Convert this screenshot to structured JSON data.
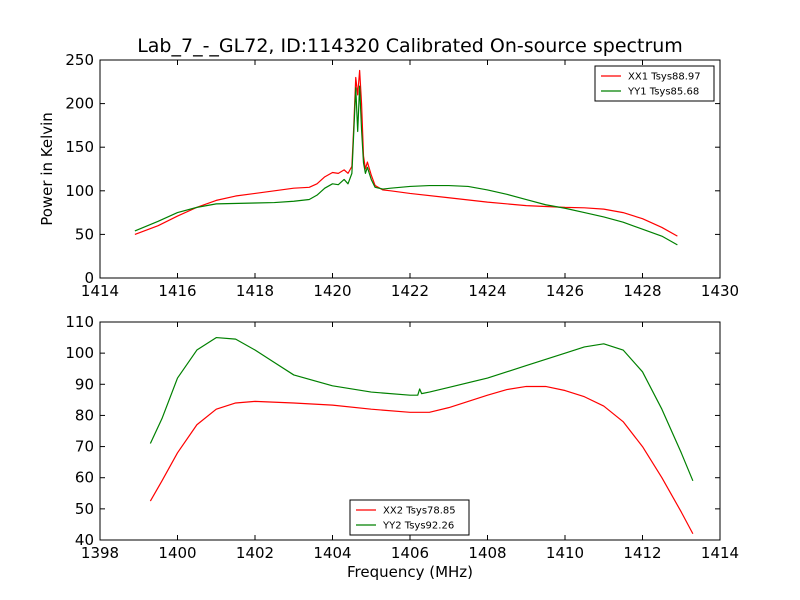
{
  "chart_data": [
    {
      "type": "line",
      "title": "Lab_7_-_GL72, ID:114320 Calibrated On-source spectrum",
      "xlabel": "",
      "ylabel": "Power in Kelvin",
      "xlim": [
        1414,
        1430
      ],
      "ylim": [
        0,
        250
      ],
      "xticks": [
        1414,
        1416,
        1418,
        1420,
        1422,
        1424,
        1426,
        1428,
        1430
      ],
      "yticks": [
        0,
        50,
        100,
        150,
        200,
        250
      ],
      "grid": false,
      "legend_position": "top-right",
      "series": [
        {
          "name": "XX1 Tsys88.97",
          "color": "#ff0000",
          "points": [
            [
              1414.9,
              50
            ],
            [
              1415.5,
              60
            ],
            [
              1416,
              71
            ],
            [
              1416.5,
              81
            ],
            [
              1417,
              89
            ],
            [
              1417.5,
              94
            ],
            [
              1418,
              97
            ],
            [
              1418.5,
              100
            ],
            [
              1419,
              103
            ],
            [
              1419.4,
              104
            ],
            [
              1419.6,
              108
            ],
            [
              1419.8,
              116
            ],
            [
              1420.0,
              121
            ],
            [
              1420.15,
              120
            ],
            [
              1420.3,
              124
            ],
            [
              1420.4,
              120
            ],
            [
              1420.5,
              128
            ],
            [
              1420.55,
              175
            ],
            [
              1420.6,
              230
            ],
            [
              1420.65,
              210
            ],
            [
              1420.7,
              238
            ],
            [
              1420.75,
              200
            ],
            [
              1420.8,
              140
            ],
            [
              1420.85,
              125
            ],
            [
              1420.9,
              133
            ],
            [
              1421.0,
              118
            ],
            [
              1421.1,
              106
            ],
            [
              1421.3,
              101
            ],
            [
              1421.5,
              100
            ],
            [
              1422,
              97
            ],
            [
              1423,
              92
            ],
            [
              1424,
              87
            ],
            [
              1425,
              83
            ],
            [
              1426,
              81
            ],
            [
              1426.5,
              80.5
            ],
            [
              1427,
              79
            ],
            [
              1427.5,
              75
            ],
            [
              1428,
              68
            ],
            [
              1428.5,
              58
            ],
            [
              1428.9,
              48
            ]
          ]
        },
        {
          "name": "YY1 Tsys85.68",
          "color": "#008000",
          "points": [
            [
              1414.9,
              54
            ],
            [
              1415.5,
              65
            ],
            [
              1416,
              75
            ],
            [
              1416.5,
              81
            ],
            [
              1417,
              85
            ],
            [
              1418,
              86
            ],
            [
              1418.5,
              86.5
            ],
            [
              1419,
              88
            ],
            [
              1419.4,
              90
            ],
            [
              1419.6,
              95
            ],
            [
              1419.8,
              103
            ],
            [
              1420.0,
              108
            ],
            [
              1420.15,
              107
            ],
            [
              1420.3,
              113
            ],
            [
              1420.4,
              108
            ],
            [
              1420.5,
              120
            ],
            [
              1420.55,
              168
            ],
            [
              1420.6,
              218
            ],
            [
              1420.65,
              168
            ],
            [
              1420.7,
              220
            ],
            [
              1420.75,
              170
            ],
            [
              1420.8,
              132
            ],
            [
              1420.85,
              120
            ],
            [
              1420.9,
              127
            ],
            [
              1421.0,
              113
            ],
            [
              1421.1,
              104
            ],
            [
              1421.3,
              102
            ],
            [
              1421.5,
              103
            ],
            [
              1422,
              105
            ],
            [
              1422.5,
              106
            ],
            [
              1423,
              106
            ],
            [
              1423.5,
              105
            ],
            [
              1424,
              101
            ],
            [
              1424.5,
              96
            ],
            [
              1425,
              90
            ],
            [
              1425.5,
              84
            ],
            [
              1426,
              80
            ],
            [
              1426.5,
              75
            ],
            [
              1427,
              70
            ],
            [
              1427.5,
              64
            ],
            [
              1428,
              56
            ],
            [
              1428.5,
              48
            ],
            [
              1428.9,
              38
            ]
          ]
        }
      ]
    },
    {
      "type": "line",
      "title": "",
      "xlabel": "Frequency (MHz)",
      "ylabel": "",
      "xlim": [
        1398,
        1414
      ],
      "ylim": [
        40,
        110
      ],
      "xticks": [
        1398,
        1400,
        1402,
        1404,
        1406,
        1408,
        1410,
        1412,
        1414
      ],
      "yticks": [
        40,
        50,
        60,
        70,
        80,
        90,
        100,
        110
      ],
      "grid": false,
      "legend_position": "bottom-center",
      "series": [
        {
          "name": "XX2 Tsys78.85",
          "color": "#ff0000",
          "points": [
            [
              1399.3,
              52.5
            ],
            [
              1399.6,
              59
            ],
            [
              1400,
              68
            ],
            [
              1400.5,
              77
            ],
            [
              1401,
              82
            ],
            [
              1401.5,
              84
            ],
            [
              1402,
              84.5
            ],
            [
              1403,
              84
            ],
            [
              1404,
              83.3
            ],
            [
              1405,
              82
            ],
            [
              1406,
              81
            ],
            [
              1406.5,
              81
            ],
            [
              1407,
              82.5
            ],
            [
              1407.5,
              84.5
            ],
            [
              1408,
              86.5
            ],
            [
              1408.5,
              88.3
            ],
            [
              1409,
              89.3
            ],
            [
              1409.5,
              89.3
            ],
            [
              1410,
              88
            ],
            [
              1410.5,
              86
            ],
            [
              1411,
              83
            ],
            [
              1411.5,
              78
            ],
            [
              1412,
              70
            ],
            [
              1412.5,
              60
            ],
            [
              1413,
              49
            ],
            [
              1413.3,
              42
            ]
          ]
        },
        {
          "name": "YY2 Tsys92.26",
          "color": "#008000",
          "points": [
            [
              1399.3,
              71
            ],
            [
              1399.6,
              79
            ],
            [
              1400,
              92
            ],
            [
              1400.5,
              101
            ],
            [
              1401,
              105
            ],
            [
              1401.5,
              104.5
            ],
            [
              1402,
              101
            ],
            [
              1402.5,
              97
            ],
            [
              1403,
              93
            ],
            [
              1404,
              89.5
            ],
            [
              1405,
              87.5
            ],
            [
              1406,
              86.5
            ],
            [
              1406.2,
              86.5
            ],
            [
              1406.25,
              88.5
            ],
            [
              1406.3,
              87
            ],
            [
              1406.5,
              87.5
            ],
            [
              1407,
              89
            ],
            [
              1408,
              92
            ],
            [
              1409,
              96
            ],
            [
              1410,
              100
            ],
            [
              1410.5,
              102
            ],
            [
              1411,
              103
            ],
            [
              1411.5,
              101
            ],
            [
              1412,
              94
            ],
            [
              1412.5,
              82
            ],
            [
              1413,
              68
            ],
            [
              1413.3,
              59
            ]
          ]
        }
      ]
    }
  ]
}
